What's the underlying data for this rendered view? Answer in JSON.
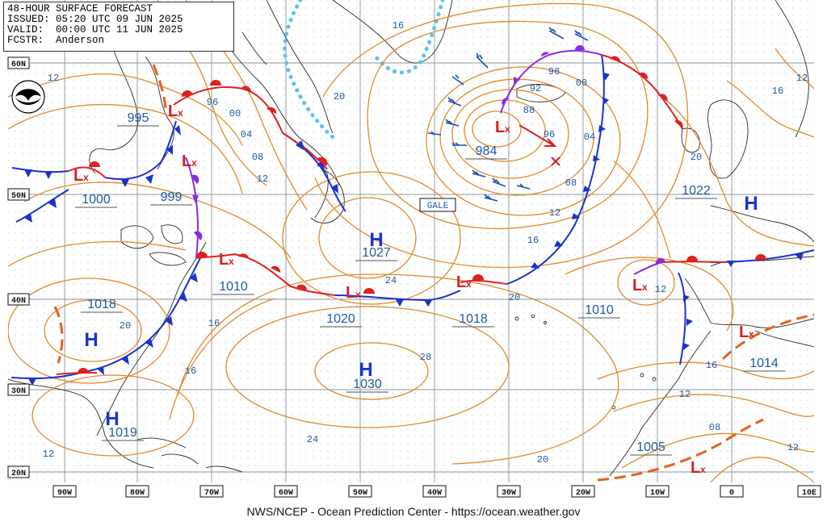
{
  "header": {
    "line1": "48-HOUR SURFACE FORECAST",
    "line2": "ISSUED: 05:20 UTC 09 JUN 2025",
    "line3": "VALID:  00:00 UTC 11 JUN 2025",
    "line4": "FCSTR:  Anderson"
  },
  "footer": "NWS/NCEP - Ocean Prediction Center - https://ocean.weather.gov",
  "logo_text": "NOAA",
  "lat_labels": [
    "60N",
    "50N",
    "40N",
    "30N",
    "20N"
  ],
  "lon_labels": [
    "90W",
    "80W",
    "70W",
    "60W",
    "50W",
    "40W",
    "30W",
    "20W",
    "10W",
    "0",
    "10E"
  ],
  "centers": [
    {
      "type": "L",
      "pressure": "995"
    },
    {
      "type": "L",
      "pressure": "1000"
    },
    {
      "type": "L",
      "pressure": "999"
    },
    {
      "type": "L",
      "pressure": "984"
    },
    {
      "type": "L",
      "pressure": "1010"
    },
    {
      "type": "L",
      "pressure": "1018"
    },
    {
      "type": "L",
      "pressure": "1020"
    },
    {
      "type": "L",
      "pressure": "1010"
    },
    {
      "type": "L",
      "pressure": "1014"
    },
    {
      "type": "L",
      "pressure": "1005"
    },
    {
      "type": "H",
      "pressure": "1027"
    },
    {
      "type": "H",
      "pressure": "1018"
    },
    {
      "type": "H",
      "pressure": "1030"
    },
    {
      "type": "H",
      "pressure": "1019"
    },
    {
      "type": "H",
      "pressure": "1022"
    }
  ],
  "isobar_labels": [
    "12",
    "16",
    "96",
    "00",
    "04",
    "08",
    "12",
    "20",
    "16",
    "12",
    "92",
    "88",
    "96",
    "00",
    "04",
    "08",
    "12",
    "16",
    "20",
    "24",
    "28",
    "24",
    "20",
    "16",
    "20",
    "12",
    "16",
    "20",
    "12",
    "16",
    "12",
    "08",
    "12",
    "96"
  ],
  "warning": "GALE",
  "colors": {
    "isobar": "#e08a2a",
    "cold_front": "#1a33cc",
    "warm_front": "#e02020",
    "occluded_front": "#8a2be2",
    "trough": "#e8601a",
    "ice_edge": "#55c4ee",
    "coast": "#222222",
    "grid": "#9aa0a6",
    "label": "#1e5aa8",
    "low": "#d42020",
    "high": "#1a33cc"
  }
}
